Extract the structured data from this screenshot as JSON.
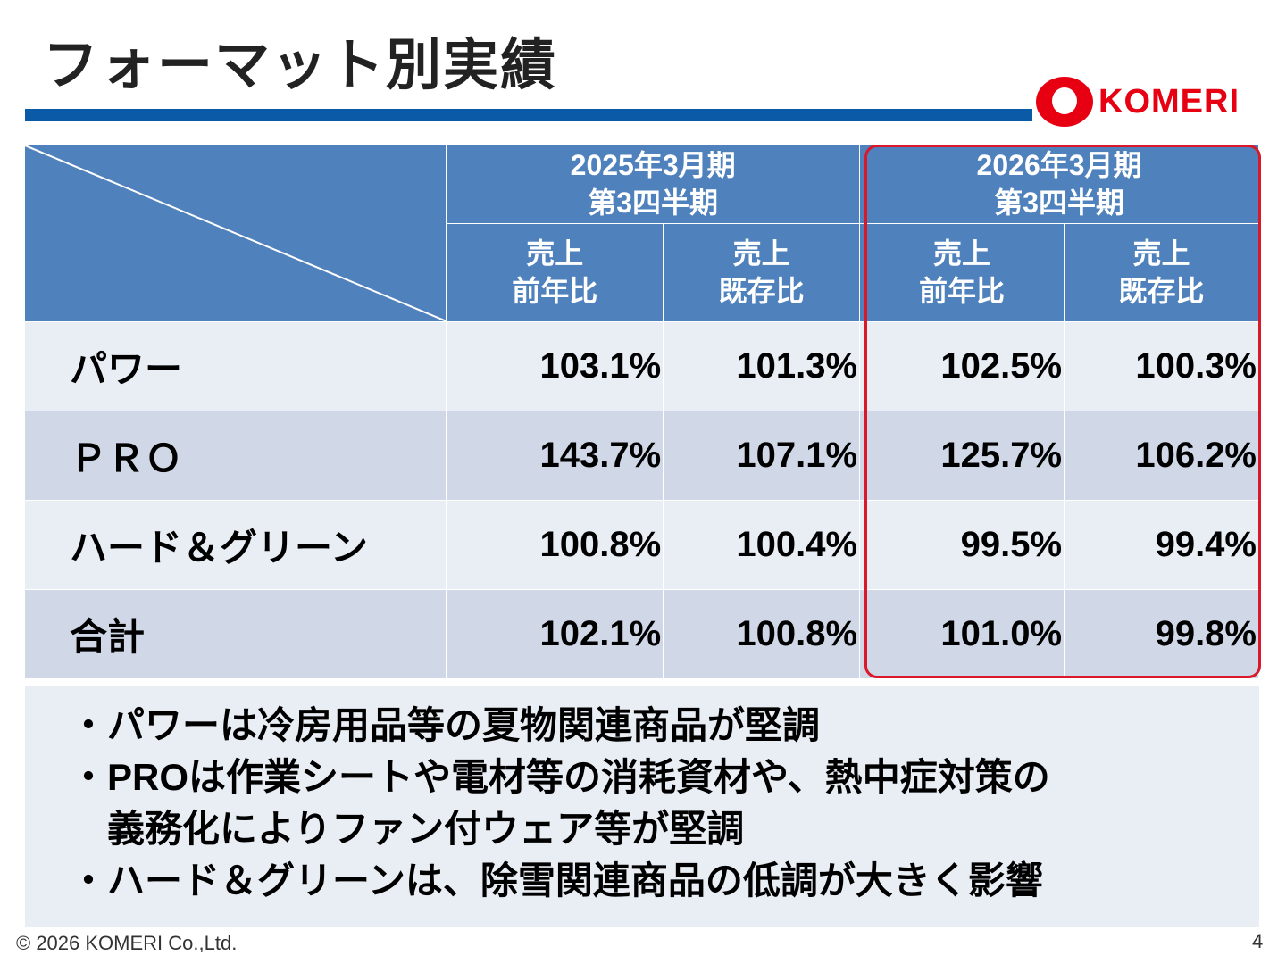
{
  "title": "フォーマット別実績",
  "logo": {
    "text": "KOMERI"
  },
  "table": {
    "periods": [
      {
        "line1": "2025年3月期",
        "line2": "第3四半期"
      },
      {
        "line1": "2026年3月期",
        "line2": "第3四半期"
      }
    ],
    "subheaders": [
      {
        "l1": "売上",
        "l2": "前年比"
      },
      {
        "l1": "売上",
        "l2": "既存比"
      },
      {
        "l1": "売上",
        "l2": "前年比"
      },
      {
        "l1": "売上",
        "l2": "既存比"
      }
    ],
    "rows": [
      {
        "label": "パワー",
        "values": [
          "103.1%",
          "101.3%",
          "102.5%",
          "100.3%"
        ]
      },
      {
        "label": "ＰＲＯ",
        "values": [
          "143.7%",
          "107.1%",
          "125.7%",
          "106.2%"
        ]
      },
      {
        "label": "ハード＆グリーン",
        "values": [
          "100.8%",
          "100.4%",
          "99.5%",
          "99.4%"
        ]
      },
      {
        "label": "合計",
        "values": [
          "102.1%",
          "100.8%",
          "101.0%",
          "99.8%"
        ]
      }
    ]
  },
  "notes": [
    "・パワーは冷房用品等の夏物関連商品が堅調",
    "・PROは作業シートや電材等の消耗資材や、熱中症対策の",
    "義務化によりファン付ウェア等が堅調",
    "・ハード＆グリーンは、除雪関連商品の低調が大きく影響"
  ],
  "footer": "© 2026 KOMERI Co.,Ltd.",
  "page_number": "4",
  "colors": {
    "header": "#4f81bd",
    "accent_bar": "#0b5aa8",
    "highlight": "#d9182a",
    "brand": "#e60012"
  }
}
